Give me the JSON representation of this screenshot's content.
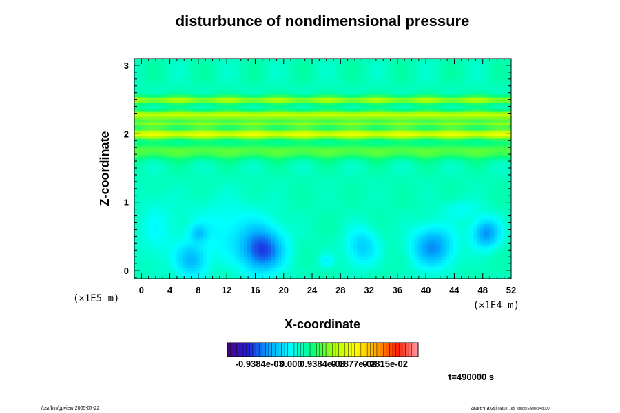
{
  "chart_data": {
    "type": "heatmap",
    "title": "disturbunce of nondimensional pressure",
    "xlabel": "X-coordinate",
    "ylabel": "Z-coordinate",
    "x_scale_label": "(×1E4 m)",
    "y_scale_label": "(×1E5 m)",
    "xlim": [
      -1,
      52
    ],
    "ylim": [
      -0.12,
      3.1
    ],
    "x_ticks": [
      0,
      4,
      8,
      12,
      16,
      20,
      24,
      28,
      32,
      36,
      40,
      44,
      48,
      52
    ],
    "y_ticks": [
      0,
      1,
      2,
      3
    ],
    "colorbar": {
      "range": [
        -0.0019,
        0.0038
      ],
      "colors": [
        "#4b0082",
        "#2222dd",
        "#00aaff",
        "#00ffff",
        "#00ff80",
        "#aaff00",
        "#ffff00",
        "#ffaa00",
        "#ff2200",
        "#ff9aa8"
      ],
      "tick_labels": [
        "-0.9384e-03",
        "0.000",
        "0.9384e-03",
        "0.1877e-02",
        "0.2815e-02"
      ],
      "tick_values": [
        -0.0009384,
        0.0,
        0.0009384,
        0.001877,
        0.002815
      ]
    },
    "background_value": 0.00035,
    "bands": [
      {
        "z": 2.0,
        "width": 0.07,
        "amp": 0.0013
      },
      {
        "z": 2.28,
        "width": 0.07,
        "amp": 0.0011
      },
      {
        "z": 2.5,
        "width": 0.06,
        "amp": 0.0009
      },
      {
        "z": 1.75,
        "width": 0.12,
        "amp": 0.0006
      },
      {
        "z": 2.15,
        "width": 0.05,
        "amp": 0.0007
      }
    ],
    "lows": [
      {
        "x": 17,
        "z": 0.3,
        "rx": 3.0,
        "rz": 0.32,
        "amp": -0.0014
      },
      {
        "x": 41,
        "z": 0.35,
        "rx": 3.0,
        "rz": 0.3,
        "amp": -0.0011
      },
      {
        "x": 48.5,
        "z": 0.55,
        "rx": 2.0,
        "rz": 0.22,
        "amp": -0.0011
      },
      {
        "x": 31,
        "z": 0.35,
        "rx": 2.3,
        "rz": 0.28,
        "amp": -0.0007
      },
      {
        "x": 7,
        "z": 0.15,
        "rx": 2.2,
        "rz": 0.25,
        "amp": -0.0008
      },
      {
        "x": 8,
        "z": 0.55,
        "rx": 1.2,
        "rz": 0.12,
        "amp": -0.0005
      },
      {
        "x": 12,
        "z": 0.6,
        "rx": 6.0,
        "rz": 0.45,
        "amp": -0.0004
      },
      {
        "x": 26,
        "z": 0.15,
        "rx": 1.0,
        "rz": 0.1,
        "amp": -0.0004
      },
      {
        "x": 45,
        "z": 0.9,
        "rx": 2.5,
        "rz": 0.15,
        "amp": -0.0003
      },
      {
        "x": 2,
        "z": 0.6,
        "rx": 2.5,
        "rz": 0.5,
        "amp": -0.0003
      }
    ],
    "time_label": "t=490000 s"
  },
  "footer": {
    "left": "/usr/bin/gpview 2005-07-22",
    "right": "arare-nakajima",
    "right_sub": "03_1e5_sitnc@Ewer/c048000"
  }
}
